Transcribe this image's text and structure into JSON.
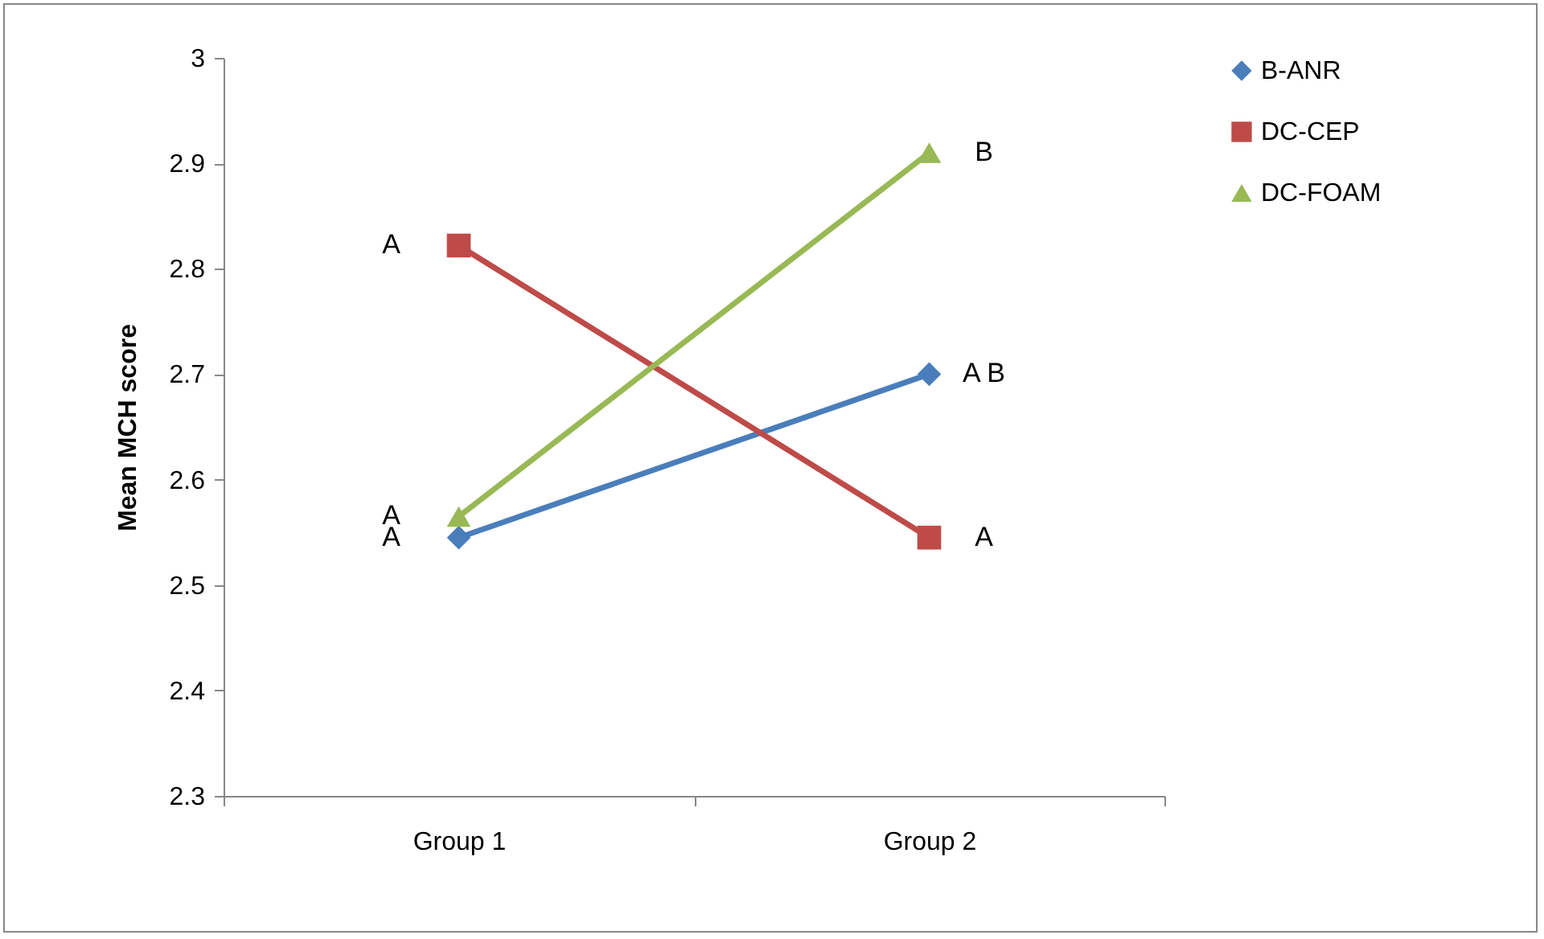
{
  "chart_data": {
    "type": "line",
    "ylabel": "Mean MCH score",
    "categories": [
      "Group 1",
      "Group 2"
    ],
    "series": [
      {
        "name": "B-ANR",
        "color": "#4a7ebb",
        "marker": "diamond",
        "values": [
          2.545,
          2.7
        ]
      },
      {
        "name": "DC-CEP",
        "color": "#be4b48",
        "marker": "square",
        "values": [
          2.822,
          2.545
        ]
      },
      {
        "name": "DC-FOAM",
        "color": "#98b954",
        "marker": "triangle",
        "values": [
          2.565,
          2.91
        ]
      }
    ],
    "ylim": [
      2.3,
      3
    ],
    "yticks": [
      2.3,
      2.4,
      2.5,
      2.6,
      2.7,
      2.8,
      2.9,
      3
    ],
    "grid": false,
    "legend": "right",
    "annotations": [
      {
        "text": "A",
        "x": "Group 1",
        "y": 2.822
      },
      {
        "text": "A",
        "x": "Group 1",
        "y": 2.565
      },
      {
        "text": "A",
        "x": "Group 1",
        "y": 2.545
      },
      {
        "text": "B",
        "x": "Group 2",
        "y": 2.91
      },
      {
        "text": "A B",
        "x": "Group 2",
        "y": 2.7
      },
      {
        "text": "A",
        "x": "Group 2",
        "y": 2.545
      }
    ]
  }
}
